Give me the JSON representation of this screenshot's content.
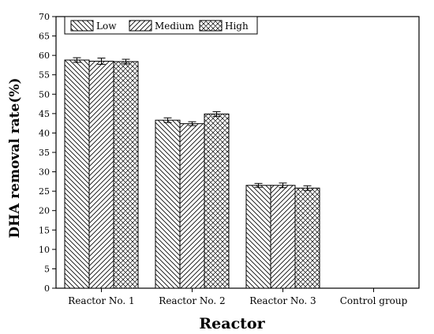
{
  "chart_data": {
    "type": "bar",
    "categories": [
      "Reactor No. 1",
      "Reactor No. 2",
      "Reactor No. 3",
      "Control group"
    ],
    "series": [
      {
        "name": "Low",
        "values": [
          58.8,
          43.3,
          26.5,
          0
        ],
        "errors": [
          0.6,
          0.6,
          0.5,
          0
        ],
        "pattern": "diag-down"
      },
      {
        "name": "Medium",
        "values": [
          58.5,
          42.4,
          26.5,
          0
        ],
        "errors": [
          0.8,
          0.5,
          0.6,
          0
        ],
        "pattern": "diag-up"
      },
      {
        "name": "High",
        "values": [
          58.4,
          44.9,
          25.8,
          0
        ],
        "errors": [
          0.6,
          0.6,
          0.6,
          0
        ],
        "pattern": "crosshatch"
      }
    ],
    "xlabel": "Reactor",
    "ylabel": "DHA removal rate(%)",
    "ylim": [
      0,
      70
    ],
    "yticks": [
      0,
      5,
      10,
      15,
      20,
      25,
      30,
      35,
      40,
      45,
      50,
      55,
      60,
      65,
      70
    ],
    "grid": false,
    "legend_position": "top-left"
  }
}
